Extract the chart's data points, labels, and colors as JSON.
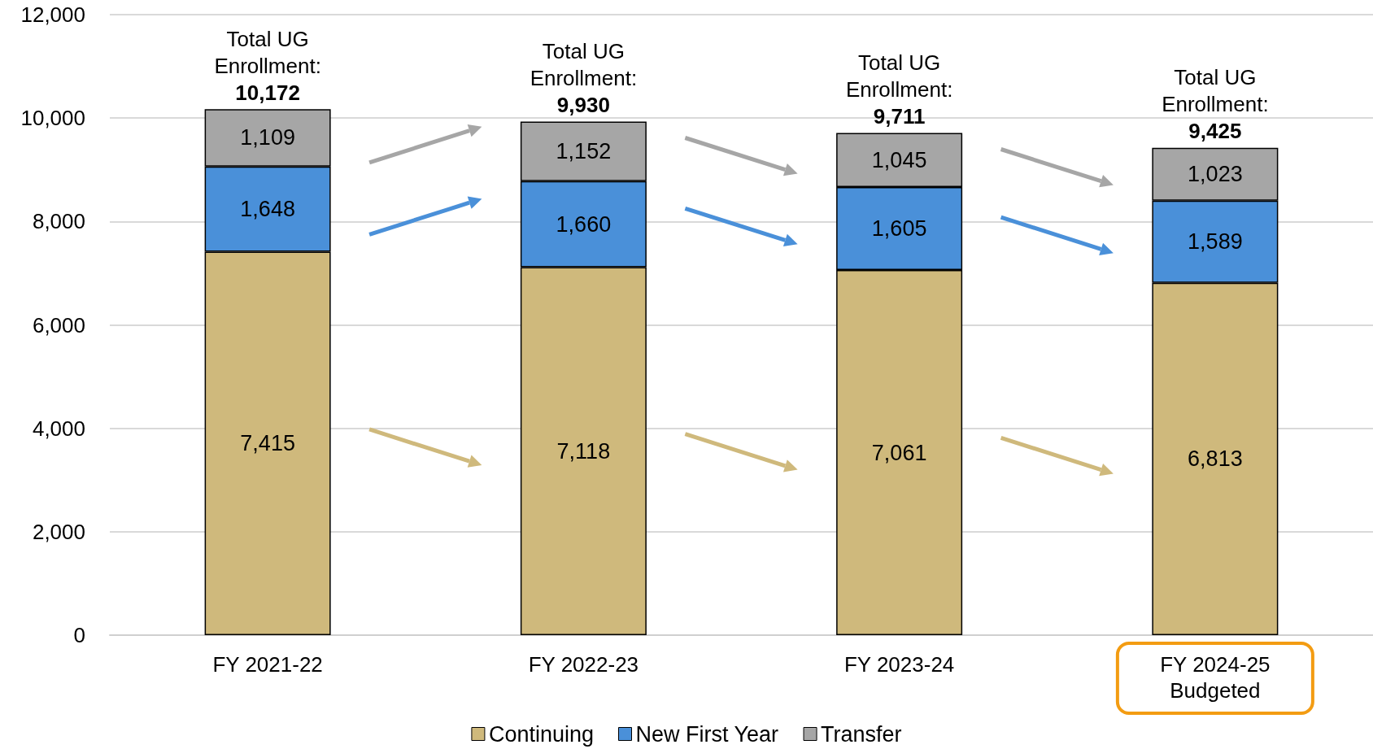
{
  "chart_data": {
    "type": "bar",
    "stacked": true,
    "categories": [
      "FY 2021-22",
      "FY 2022-23",
      "FY 2023-24",
      "FY 2024-25\nBudgeted"
    ],
    "series": [
      {
        "name": "Continuing",
        "color": "#cfb97c",
        "values": [
          7415,
          7118,
          7061,
          6813
        ],
        "value_labels": [
          "7,415",
          "7,118",
          "7,061",
          "6,813"
        ]
      },
      {
        "name": "New First Year",
        "color": "#4a90d9",
        "values": [
          1648,
          1660,
          1605,
          1589
        ],
        "value_labels": [
          "1,648",
          "1,660",
          "1,605",
          "1,589"
        ]
      },
      {
        "name": "Transfer",
        "color": "#a6a6a6",
        "values": [
          1109,
          1152,
          1045,
          1023
        ],
        "value_labels": [
          "1,109",
          "1,152",
          "1,045",
          "1,023"
        ]
      }
    ],
    "totals": [
      "Total UG\nEnrollment:\n10,172",
      "Total UG\nEnrollment:\n9,930",
      "Total UG\nEnrollment:\n9,711",
      "Total UG\nEnrollment:\n9,425"
    ],
    "ylim": [
      0,
      12000
    ],
    "yticks": [
      {
        "value": 0,
        "label": "0"
      },
      {
        "value": 2000,
        "label": "2,000"
      },
      {
        "value": 4000,
        "label": "4,000"
      },
      {
        "value": 6000,
        "label": "6,000"
      },
      {
        "value": 8000,
        "label": "8,000"
      },
      {
        "value": 10000,
        "label": "10,000"
      },
      {
        "value": 12000,
        "label": "12,000"
      }
    ],
    "grid": "y",
    "legend": "bottom"
  }
}
